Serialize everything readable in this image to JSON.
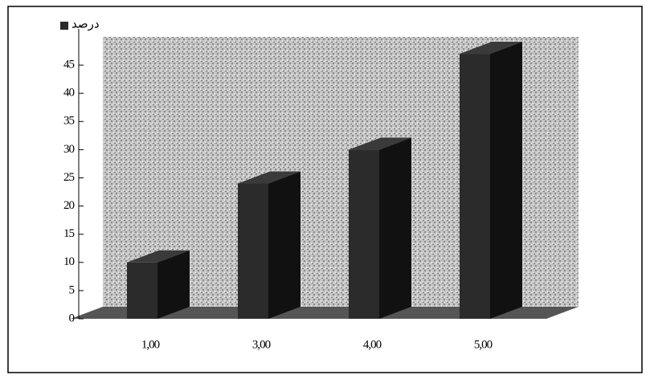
{
  "chart_data": {
    "type": "bar3d",
    "categories": [
      "1,00",
      "3,00",
      "4,00",
      "5,00"
    ],
    "series": [
      {
        "name": "درصد",
        "color": "#2b2b2b",
        "values": [
          10,
          24,
          30,
          47
        ]
      }
    ],
    "ylim": [
      0,
      50
    ],
    "yticks": [
      0,
      5,
      10,
      15,
      20,
      25,
      30,
      35,
      40,
      45
    ]
  }
}
